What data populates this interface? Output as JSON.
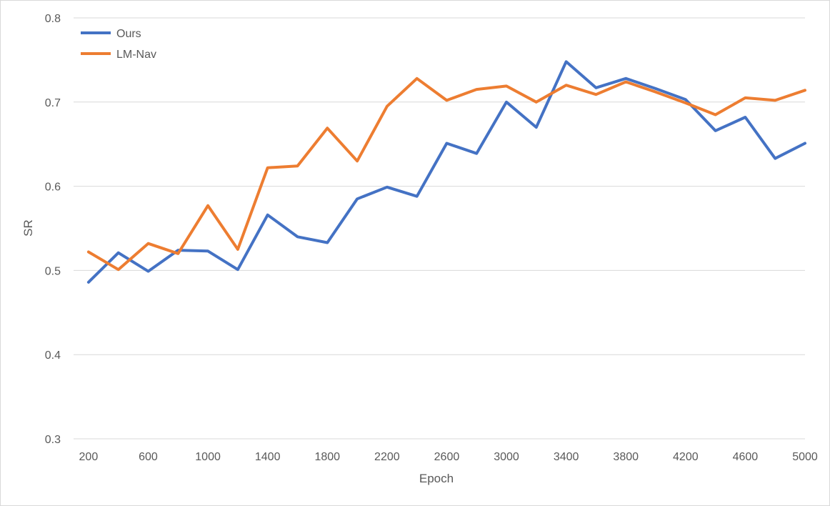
{
  "chart_data": {
    "type": "line",
    "title": "",
    "xlabel": "Epoch",
    "ylabel": "SR",
    "ylim": [
      0.3,
      0.8
    ],
    "yticks": [
      "0.3",
      "0.4",
      "0.5",
      "0.6",
      "0.7",
      "0.8"
    ],
    "x": [
      200,
      400,
      600,
      800,
      1000,
      1200,
      1400,
      1600,
      1800,
      2000,
      2200,
      2400,
      2600,
      2800,
      3000,
      3200,
      3400,
      3600,
      3800,
      4000,
      4200,
      4400,
      4600,
      4800,
      5000
    ],
    "xtick_labels": [
      "200",
      "600",
      "1000",
      "1400",
      "1800",
      "2200",
      "2600",
      "3000",
      "3400",
      "3800",
      "4200",
      "4600",
      "5000"
    ],
    "grid": true,
    "legend_position": "top-left",
    "series": [
      {
        "name": "Ours",
        "color": "#4472c4",
        "values": [
          0.486,
          0.521,
          0.499,
          0.524,
          0.523,
          0.501,
          0.566,
          0.54,
          0.533,
          0.585,
          0.599,
          0.588,
          0.651,
          0.639,
          0.7,
          0.67,
          0.748,
          0.717,
          0.728,
          0.716,
          0.703,
          0.666,
          0.682,
          0.633,
          0.651
        ]
      },
      {
        "name": "LM-Nav",
        "color": "#ed7d31",
        "values": [
          0.522,
          0.501,
          0.532,
          0.52,
          0.577,
          0.525,
          0.622,
          0.624,
          0.669,
          0.63,
          0.695,
          0.728,
          0.702,
          0.715,
          0.719,
          0.7,
          0.72,
          0.709,
          0.724,
          0.712,
          0.699,
          0.685,
          0.705,
          0.702,
          0.714
        ]
      }
    ]
  }
}
